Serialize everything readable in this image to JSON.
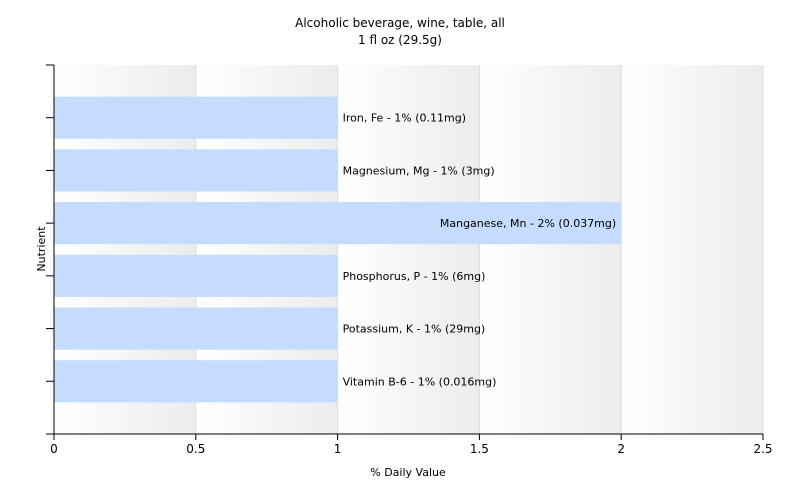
{
  "chart_data": {
    "type": "bar",
    "orientation": "horizontal",
    "title": "Alcoholic beverage, wine, table, all",
    "subtitle": "1 fl oz (29.5g)",
    "xlabel": "% Daily Value",
    "ylabel": "Nutrient",
    "xlim": [
      0,
      2.5
    ],
    "xticks": [
      "0",
      "0.5",
      "1",
      "1.5",
      "2",
      "2.5"
    ],
    "grid": true,
    "bar_color": "#c6dcff",
    "categories": [
      "Iron, Fe",
      "Magnesium, Mg",
      "Manganese, Mn",
      "Phosphorus, P",
      "Potassium, K",
      "Vitamin B-6"
    ],
    "values": [
      1,
      1,
      2,
      1,
      1,
      1
    ],
    "data_labels": [
      "Iron, Fe - 1% (0.11mg)",
      "Magnesium, Mg - 1% (3mg)",
      "Manganese, Mn - 2% (0.037mg)",
      "Phosphorus, P - 1% (6mg)",
      "Potassium, K - 1% (29mg)",
      "Vitamin B-6 - 1% (0.016mg)"
    ]
  }
}
